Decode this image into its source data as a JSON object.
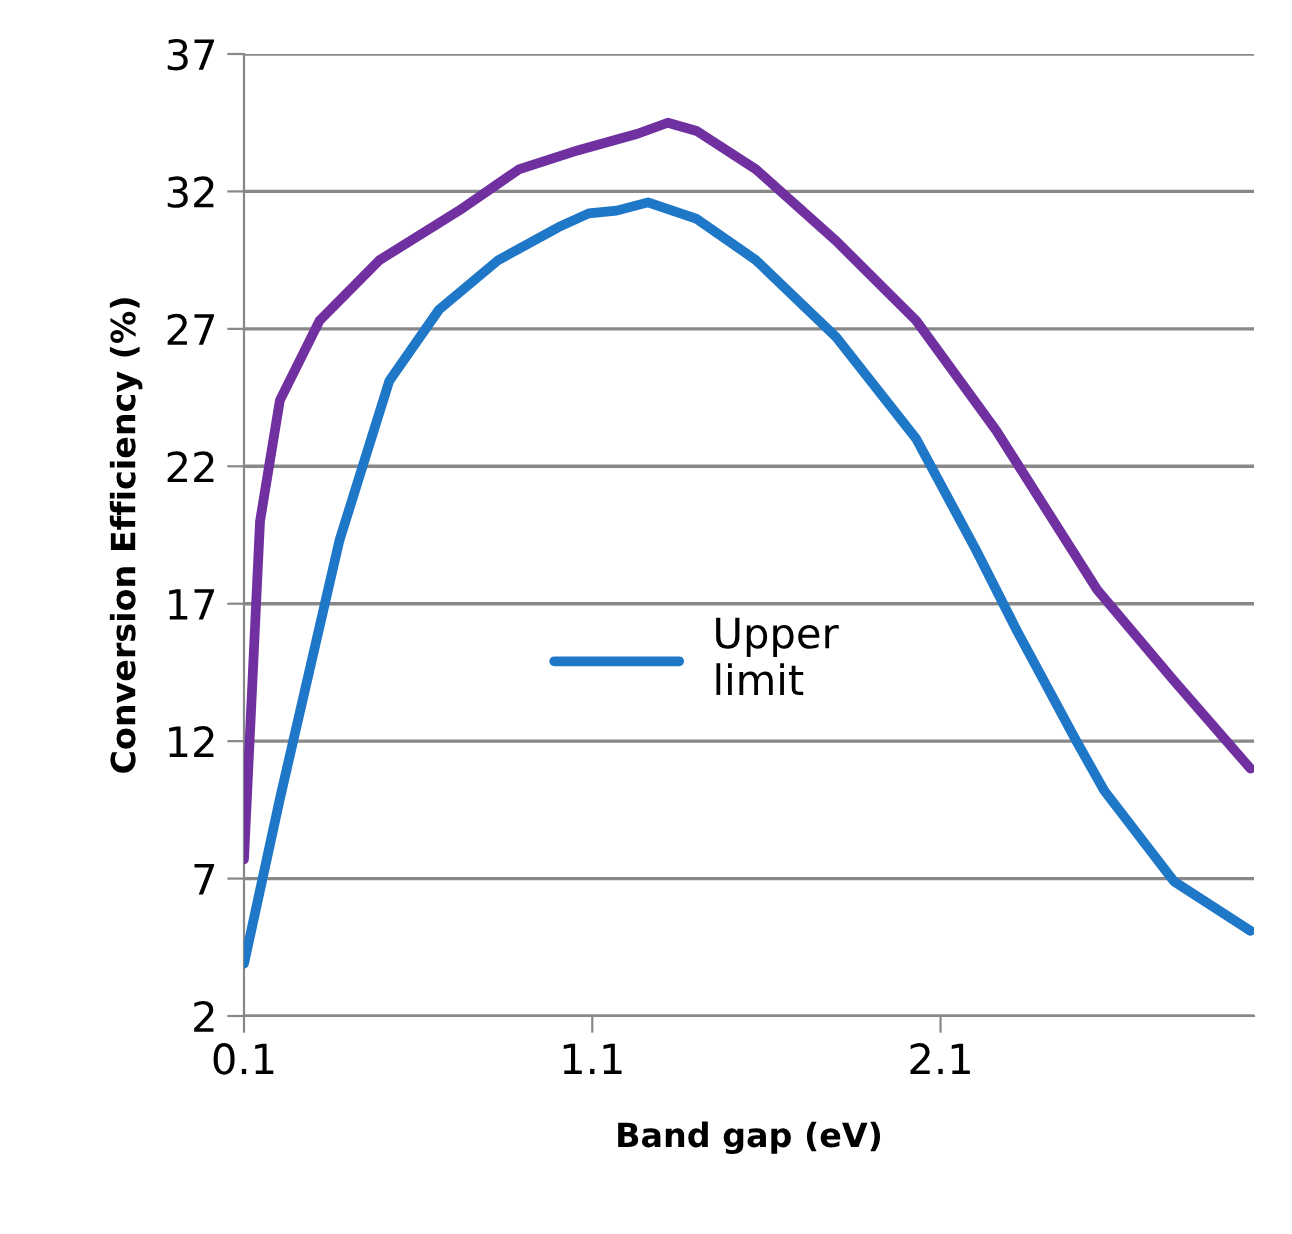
{
  "chart_data": {
    "type": "line",
    "xlabel": "Band gap (eV)",
    "ylabel": "Conversion Efficiency (%)",
    "xlim": [
      0.1,
      3.0
    ],
    "xticks": [
      0.1,
      1.1,
      2.1
    ],
    "ylim": [
      2,
      37
    ],
    "yticks": [
      2,
      7,
      12,
      17,
      22,
      27,
      32,
      37
    ],
    "grid": "y",
    "legend": "center",
    "line_style": "solid",
    "marker": "none",
    "series": [
      {
        "color": "#7030a0",
        "x": [
          0.1,
          0.146,
          0.203,
          0.317,
          0.489,
          0.717,
          0.889,
          1.06,
          1.23,
          1.317,
          1.4,
          1.57,
          1.8,
          2.03,
          2.26,
          2.55,
          2.77,
          2.99
        ],
        "values": [
          7.7,
          20.0,
          24.4,
          27.3,
          29.5,
          31.3,
          32.8,
          33.5,
          34.1,
          34.5,
          34.2,
          32.8,
          30.2,
          27.3,
          23.3,
          17.5,
          14.2,
          11.0
        ]
      },
      {
        "name": "Upper limit",
        "color": "#1f77c8",
        "x": [
          0.1,
          0.203,
          0.374,
          0.517,
          0.66,
          0.83,
          1.003,
          1.09,
          1.17,
          1.26,
          1.4,
          1.57,
          1.8,
          2.03,
          2.2,
          2.32,
          2.49,
          2.57,
          2.77,
          2.99
        ],
        "values": [
          3.9,
          9.9,
          19.3,
          25.1,
          27.7,
          29.5,
          30.7,
          31.2,
          31.3,
          31.6,
          31.0,
          29.5,
          26.7,
          23.0,
          19.0,
          16.0,
          12.0,
          10.2,
          6.9,
          5.1
        ]
      }
    ]
  }
}
